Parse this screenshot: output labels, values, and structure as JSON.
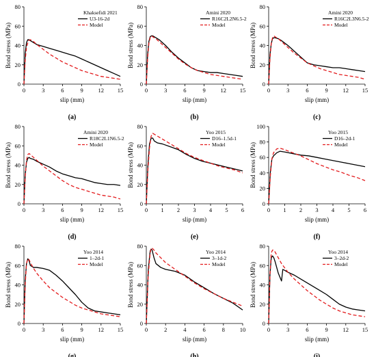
{
  "colors": {
    "experiment": "#000000",
    "model": "#e31a1c",
    "axis": "#000000"
  },
  "chart_data": [
    {
      "type": "line",
      "panel_label": "(a)",
      "legend_title": "Khaksefidi 2021",
      "xlabel": "slip (mm)",
      "ylabel": "Bond stress (MPa)",
      "xlim": [
        0,
        15
      ],
      "ylim": [
        0,
        80
      ],
      "xticks": [
        "0",
        "3",
        "6",
        "9",
        "12",
        "15"
      ],
      "yticks": [
        "0",
        "20",
        "40",
        "60",
        "80"
      ],
      "legend": "top-right",
      "series": [
        {
          "name": "U3-16-2d",
          "style": "solid",
          "x": [
            0,
            0.2,
            0.4,
            0.6,
            0.8,
            1,
            1.5,
            2,
            3,
            4,
            5,
            6,
            7,
            8,
            9,
            10,
            11,
            12,
            13,
            14,
            15
          ],
          "y": [
            0,
            32,
            43,
            46,
            46,
            45,
            43,
            41,
            39,
            37,
            35,
            33,
            31,
            29,
            26,
            23,
            20,
            17,
            14,
            11,
            8
          ]
        },
        {
          "name": "Model",
          "style": "dashed",
          "x": [
            0,
            0.2,
            0.4,
            0.7,
            1,
            1.5,
            2,
            3,
            4,
            5,
            6,
            7,
            8,
            9,
            10,
            11,
            12,
            13,
            14,
            15
          ],
          "y": [
            0,
            25,
            38,
            45,
            46,
            44,
            41,
            36,
            31,
            27,
            23,
            20,
            17,
            14,
            12,
            10,
            8,
            7,
            6,
            5
          ]
        }
      ]
    },
    {
      "type": "line",
      "panel_label": "(b)",
      "legend_title": "Amini 2020",
      "xlabel": "slip (mm)",
      "ylabel": "Bond stress (MPa)",
      "xlim": [
        0,
        15
      ],
      "ylim": [
        0,
        80
      ],
      "xticks": [
        "0",
        "3",
        "6",
        "9",
        "12",
        "15"
      ],
      "yticks": [
        "0",
        "20",
        "40",
        "60",
        "80"
      ],
      "legend": "top-right",
      "series": [
        {
          "name": "R16C2L2N6.5-2",
          "style": "solid",
          "x": [
            0,
            0.2,
            0.4,
            0.6,
            0.8,
            1,
            1.5,
            2,
            3,
            4,
            5,
            6,
            7,
            8,
            9,
            10,
            11,
            12,
            13,
            14,
            15
          ],
          "y": [
            0,
            30,
            44,
            49,
            50,
            50,
            48,
            46,
            40,
            33,
            27,
            22,
            17,
            14,
            13,
            12,
            12,
            11,
            10,
            9,
            8
          ]
        },
        {
          "name": "Model",
          "style": "dashed",
          "x": [
            0,
            0.2,
            0.4,
            0.6,
            0.8,
            1,
            1.5,
            2,
            3,
            4,
            5,
            6,
            7,
            8,
            9,
            10,
            11,
            12,
            13,
            14,
            15
          ],
          "y": [
            0,
            26,
            42,
            48,
            50,
            49,
            47,
            44,
            38,
            32,
            26,
            21,
            17,
            14,
            12,
            10,
            9,
            8,
            7,
            6,
            5
          ]
        }
      ]
    },
    {
      "type": "line",
      "panel_label": "(c)",
      "legend_title": "Amini 2020",
      "xlabel": "slip (mm)",
      "ylabel": "Bond stress (MPa)",
      "xlim": [
        0,
        15
      ],
      "ylim": [
        0,
        80
      ],
      "xticks": [
        "0",
        "3",
        "6",
        "9",
        "12",
        "15"
      ],
      "yticks": [
        "0",
        "20",
        "40",
        "60",
        "80"
      ],
      "legend": "top-right",
      "series": [
        {
          "name": "R16C2L3N6.5-2",
          "style": "solid",
          "x": [
            0,
            0.2,
            0.4,
            0.6,
            0.8,
            1,
            1.5,
            2,
            3,
            4,
            5,
            6,
            7,
            8,
            9,
            10,
            11,
            12,
            13,
            14,
            15
          ],
          "y": [
            0,
            30,
            42,
            47,
            48,
            48,
            47,
            45,
            40,
            34,
            28,
            22,
            20,
            19,
            18,
            17,
            17,
            16,
            15,
            14,
            13
          ]
        },
        {
          "name": "Model",
          "style": "dashed",
          "x": [
            0,
            0.2,
            0.4,
            0.6,
            0.8,
            1,
            1.5,
            2,
            3,
            4,
            5,
            6,
            7,
            8,
            9,
            10,
            11,
            12,
            13,
            14,
            15
          ],
          "y": [
            0,
            26,
            42,
            48,
            50,
            49,
            47,
            44,
            38,
            32,
            27,
            22,
            19,
            16,
            14,
            12,
            10,
            9,
            8,
            7,
            5
          ]
        }
      ]
    },
    {
      "type": "line",
      "panel_label": "(d)",
      "legend_title": "Amini 2020",
      "xlabel": "slip (mm)",
      "ylabel": "Bond stress (MPa)",
      "xlim": [
        0,
        15
      ],
      "ylim": [
        0,
        80
      ],
      "xticks": [
        "0",
        "3",
        "6",
        "9",
        "12",
        "15"
      ],
      "yticks": [
        "0",
        "20",
        "40",
        "60",
        "80"
      ],
      "legend": "top-right",
      "series": [
        {
          "name": "R18C2L1N6.5-2",
          "style": "solid",
          "x": [
            0,
            0.2,
            0.4,
            0.6,
            0.8,
            1,
            1.5,
            2,
            3,
            4,
            5,
            6,
            7,
            8,
            9,
            10,
            11,
            12,
            13,
            14,
            15
          ],
          "y": [
            0,
            30,
            43,
            47,
            48,
            47,
            46,
            44,
            41,
            38,
            34,
            31,
            29,
            27,
            26,
            24,
            22,
            21,
            20,
            20,
            19
          ]
        },
        {
          "name": "Model",
          "style": "dashed",
          "x": [
            0,
            0.2,
            0.4,
            0.6,
            0.8,
            1,
            1.5,
            2,
            3,
            4,
            5,
            6,
            7,
            8,
            9,
            10,
            11,
            12,
            13,
            14,
            15
          ],
          "y": [
            0,
            28,
            45,
            51,
            52,
            51,
            48,
            45,
            39,
            34,
            29,
            24,
            20,
            17,
            15,
            13,
            11,
            9,
            8,
            7,
            5
          ]
        }
      ]
    },
    {
      "type": "line",
      "panel_label": "(e)",
      "legend_title": "Yoo 2015",
      "xlabel": "slip (mm)",
      "ylabel": "Bond stress (MPa)",
      "xlim": [
        0,
        6
      ],
      "ylim": [
        0,
        80
      ],
      "xticks": [
        "0",
        "1",
        "2",
        "3",
        "4",
        "5",
        "6"
      ],
      "yticks": [
        "0",
        "20",
        "40",
        "60",
        "80"
      ],
      "legend": "top-right",
      "series": [
        {
          "name": "D16–1.5d-1",
          "style": "solid",
          "x": [
            0,
            0.1,
            0.2,
            0.3,
            0.4,
            0.5,
            0.7,
            1,
            1.5,
            2,
            2.5,
            3,
            3.5,
            4,
            4.5,
            5,
            5.5,
            6
          ],
          "y": [
            0,
            40,
            62,
            68,
            68,
            65,
            63,
            62,
            59,
            56,
            51,
            47,
            44,
            42,
            40,
            38,
            36,
            34
          ]
        },
        {
          "name": "Model",
          "style": "dashed",
          "x": [
            0,
            0.1,
            0.2,
            0.3,
            0.4,
            0.5,
            0.7,
            1,
            1.5,
            2,
            2.5,
            3,
            3.5,
            4,
            4.5,
            5,
            5.5,
            6
          ],
          "y": [
            0,
            35,
            58,
            70,
            73,
            72,
            70,
            67,
            62,
            57,
            52,
            48,
            45,
            42,
            39,
            37,
            35,
            32
          ]
        }
      ]
    },
    {
      "type": "line",
      "panel_label": "(f)",
      "legend_title": "Yoo 2015",
      "xlabel": "slip (mm)",
      "ylabel": "Bond stress (MPa)",
      "xlim": [
        0,
        6
      ],
      "ylim": [
        0,
        100
      ],
      "xticks": [
        "0",
        "1",
        "2",
        "3",
        "4",
        "5",
        "6"
      ],
      "yticks": [
        "0",
        "20",
        "40",
        "60",
        "80",
        "100"
      ],
      "legend": "top-right",
      "series": [
        {
          "name": "D16–2d-1",
          "style": "solid",
          "x": [
            0,
            0.1,
            0.2,
            0.3,
            0.5,
            0.7,
            1,
            1.5,
            2,
            2.5,
            3,
            3.5,
            4,
            4.5,
            5,
            5.5,
            6
          ],
          "y": [
            0,
            40,
            58,
            62,
            66,
            68,
            67,
            65,
            63,
            62,
            60,
            58,
            56,
            54,
            52,
            50,
            48
          ]
        },
        {
          "name": "Model",
          "style": "dashed",
          "x": [
            0,
            0.1,
            0.2,
            0.3,
            0.5,
            0.7,
            1,
            1.5,
            2,
            2.5,
            3,
            3.5,
            4,
            4.5,
            5,
            5.5,
            6
          ],
          "y": [
            0,
            35,
            58,
            66,
            71,
            72,
            70,
            66,
            62,
            57,
            52,
            48,
            44,
            41,
            37,
            34,
            30
          ]
        }
      ]
    },
    {
      "type": "line",
      "panel_label": "(g)",
      "legend_title": "Yoo 2014",
      "xlabel": "slip (mm)",
      "ylabel": "Bond stress (MPa)",
      "xlim": [
        0,
        15
      ],
      "ylim": [
        0,
        80
      ],
      "xticks": [
        "0",
        "3",
        "6",
        "9",
        "12",
        "15"
      ],
      "yticks": [
        "0",
        "20",
        "40",
        "60",
        "80"
      ],
      "legend": "top-right",
      "series": [
        {
          "name": "1–2d-1",
          "style": "solid",
          "x": [
            0,
            0.2,
            0.4,
            0.6,
            0.8,
            1,
            1.5,
            2,
            3,
            4,
            5,
            6,
            7,
            8,
            9,
            10,
            11,
            12,
            13,
            14,
            15
          ],
          "y": [
            0,
            45,
            62,
            67,
            65,
            60,
            58,
            58,
            57,
            55,
            50,
            44,
            37,
            30,
            22,
            16,
            13,
            12,
            11,
            10,
            9
          ]
        },
        {
          "name": "Model",
          "style": "dashed",
          "x": [
            0,
            0.2,
            0.4,
            0.6,
            0.8,
            1,
            1.5,
            2,
            3,
            4,
            5,
            6,
            7,
            8,
            9,
            10,
            11,
            12,
            13,
            14,
            15
          ],
          "y": [
            0,
            40,
            62,
            67,
            66,
            63,
            57,
            52,
            44,
            37,
            32,
            27,
            23,
            19,
            16,
            14,
            12,
            10,
            9,
            8,
            7
          ]
        }
      ]
    },
    {
      "type": "line",
      "panel_label": "(h)",
      "legend_title": "Yoo 2014",
      "xlabel": "slip (mm)",
      "ylabel": "Bond stress (MPa)",
      "xlim": [
        0,
        10
      ],
      "ylim": [
        0,
        80
      ],
      "xticks": [
        "0",
        "2",
        "4",
        "6",
        "8",
        "10"
      ],
      "yticks": [
        "0",
        "20",
        "40",
        "60",
        "80"
      ],
      "legend": "top-right",
      "series": [
        {
          "name": "3–1d-2",
          "style": "solid",
          "x": [
            0,
            0.2,
            0.4,
            0.5,
            0.6,
            0.8,
            1,
            1.5,
            2,
            3,
            4,
            5,
            6,
            7,
            8,
            9,
            10
          ],
          "y": [
            0,
            55,
            75,
            77,
            76,
            68,
            62,
            58,
            56,
            54,
            50,
            43,
            37,
            31,
            26,
            21,
            14
          ]
        },
        {
          "name": "Model",
          "style": "dashed",
          "x": [
            0,
            0.2,
            0.4,
            0.5,
            0.6,
            0.8,
            1,
            1.5,
            2,
            3,
            4,
            5,
            6,
            7,
            8,
            9,
            10
          ],
          "y": [
            0,
            50,
            73,
            78,
            78,
            76,
            73,
            68,
            63,
            56,
            49,
            42,
            36,
            31,
            26,
            22,
            18
          ]
        }
      ]
    },
    {
      "type": "line",
      "panel_label": "(i)",
      "legend_title": "Yoo 2014",
      "xlabel": "slip (mm)",
      "ylabel": "Bond stress (MPa)",
      "xlim": [
        0,
        15
      ],
      "ylim": [
        0,
        80
      ],
      "xticks": [
        "0",
        "3",
        "6",
        "9",
        "12",
        "15"
      ],
      "yticks": [
        "0",
        "20",
        "40",
        "60",
        "80"
      ],
      "legend": "top-right",
      "series": [
        {
          "name": "3–2d-2",
          "style": "solid",
          "x": [
            0,
            0.2,
            0.4,
            0.6,
            0.8,
            1,
            1.5,
            2,
            2.2,
            2.5,
            3,
            4,
            5,
            6,
            7,
            8,
            9,
            10,
            11,
            12,
            13,
            14,
            15
          ],
          "y": [
            0,
            50,
            68,
            70,
            68,
            64,
            52,
            44,
            56,
            55,
            53,
            50,
            46,
            42,
            38,
            34,
            30,
            25,
            20,
            17,
            15,
            14,
            13
          ]
        },
        {
          "name": "Model",
          "style": "dashed",
          "x": [
            0,
            0.2,
            0.4,
            0.6,
            0.8,
            1,
            1.5,
            2,
            3,
            4,
            5,
            6,
            7,
            8,
            9,
            10,
            11,
            12,
            13,
            14,
            15
          ],
          "y": [
            0,
            50,
            73,
            76,
            76,
            74,
            68,
            62,
            53,
            46,
            40,
            34,
            29,
            24,
            20,
            16,
            13,
            11,
            9,
            8,
            7
          ]
        }
      ]
    }
  ]
}
